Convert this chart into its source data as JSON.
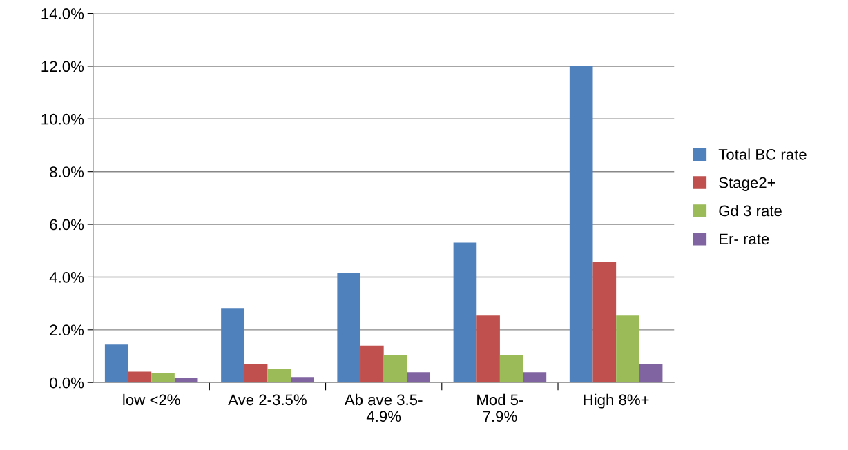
{
  "chart_data": {
    "type": "bar",
    "categories": [
      "low <2%",
      "Ave 2-3.5%",
      "Ab ave 3.5-\n4.9%",
      "Mod 5-\n7.9%",
      "High 8%+"
    ],
    "series": [
      {
        "name": "Total BC rate",
        "color": "#4f81bd",
        "values": [
          1.44,
          2.83,
          4.16,
          5.31,
          12.0
        ]
      },
      {
        "name": "Stage2+",
        "color": "#c0504d",
        "values": [
          0.41,
          0.71,
          1.4,
          2.54,
          4.58
        ]
      },
      {
        "name": "Gd 3 rate",
        "color": "#9bbb59",
        "values": [
          0.37,
          0.52,
          1.03,
          1.03,
          2.54
        ]
      },
      {
        "name": "Er- rate",
        "color": "#8064a2",
        "values": [
          0.16,
          0.21,
          0.39,
          0.39,
          0.71
        ]
      }
    ],
    "ylim": [
      0,
      14
    ],
    "yticks": [
      {
        "value": 0,
        "label": "0.0%"
      },
      {
        "value": 2,
        "label": "2.0%"
      },
      {
        "value": 4,
        "label": "4.0%"
      },
      {
        "value": 6,
        "label": "6.0%"
      },
      {
        "value": 8,
        "label": "8.0%"
      },
      {
        "value": 10,
        "label": "10.0%"
      },
      {
        "value": 12,
        "label": "12.0%"
      },
      {
        "value": 14,
        "label": "14.0%"
      }
    ],
    "grid": "y",
    "legend": "right"
  }
}
